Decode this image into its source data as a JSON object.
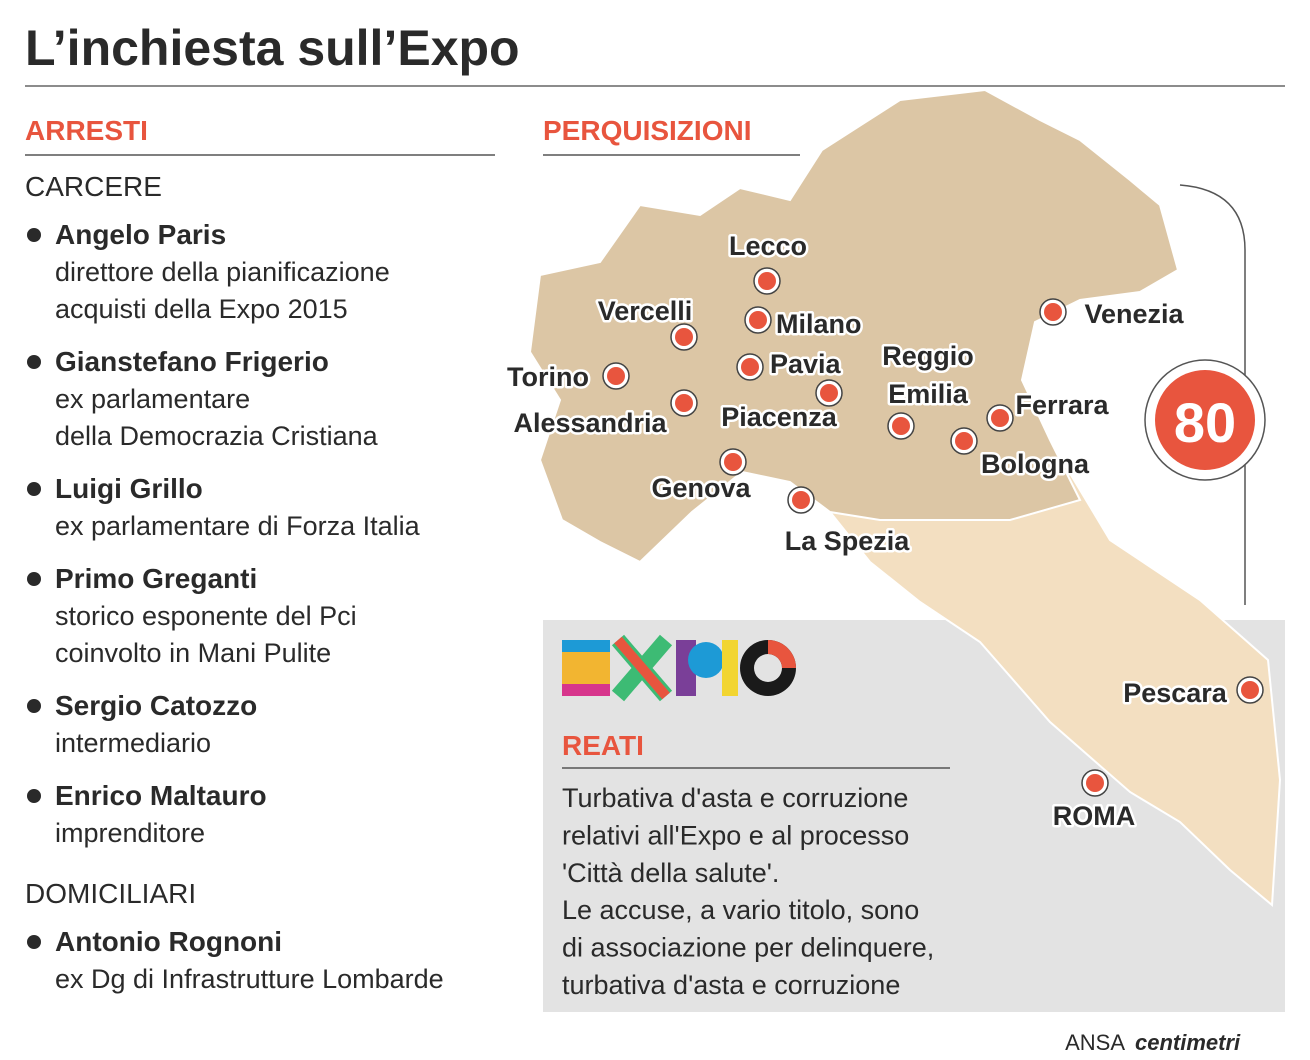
{
  "header": {
    "title": "L’inchiesta sull’Expo"
  },
  "arresti": {
    "title": "ARRESTI",
    "groups": [
      {
        "label": "CARCERE",
        "people": [
          {
            "name": "Angelo Paris",
            "role_lines": [
              "direttore della pianificazione",
              "acquisti della Expo 2015"
            ]
          },
          {
            "name": "Gianstefano Frigerio",
            "role_lines": [
              "ex parlamentare",
              "della Democrazia Cristiana"
            ]
          },
          {
            "name": "Luigi Grillo",
            "role_lines": [
              "ex parlamentare di Forza Italia"
            ]
          },
          {
            "name": "Primo Greganti",
            "role_lines": [
              "storico esponente del Pci",
              "coinvolto in Mani Pulite"
            ]
          },
          {
            "name": "Sergio Catozzo",
            "role_lines": [
              "intermediario"
            ]
          },
          {
            "name": "Enrico Maltauro",
            "role_lines": [
              "imprenditore"
            ]
          }
        ]
      },
      {
        "label": "DOMICILIARI",
        "people": [
          {
            "name": "Antonio Rognoni",
            "role_lines": [
              "ex Dg di Infrastrutture Lombarde"
            ]
          }
        ]
      }
    ]
  },
  "perquisizioni": {
    "title": "PERQUISIZIONI",
    "count": "80",
    "cities": [
      "Lecco",
      "Vercelli",
      "Milano",
      "Torino",
      "Pavia",
      "Reggio Emilia",
      "Piacenza",
      "Alessandria",
      "Ferrara",
      "Bologna",
      "Genova",
      "La Spezia",
      "Venezia",
      "Pescara",
      "ROMA"
    ]
  },
  "reati": {
    "title": "REATI",
    "lines": [
      "Turbativa d'asta e corruzione",
      "relativi all'Expo e al processo",
      "'Città della salute'.",
      "Le accuse, a vario titolo, sono",
      "di associazione per delinquere,",
      "turbativa d'asta e corruzione"
    ]
  },
  "footer": {
    "source": "ANSA",
    "brand": "centimetri"
  }
}
